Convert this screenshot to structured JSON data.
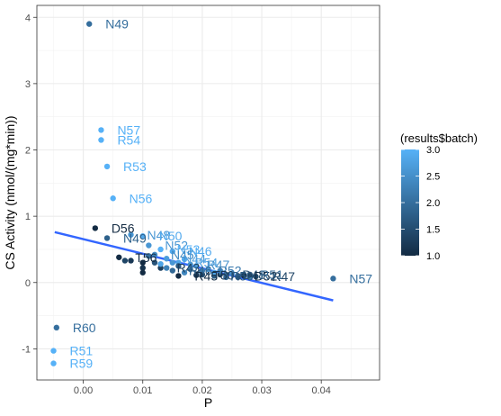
{
  "chart_data": {
    "type": "scatter",
    "title": "",
    "xlabel": "P",
    "ylabel": "CS Activity (nmol/(mg*min))",
    "xlim": [
      -0.0078,
      0.0498
    ],
    "ylim": [
      -1.47,
      4.18
    ],
    "xticks": [
      0.0,
      0.01,
      0.02,
      0.03,
      0.04
    ],
    "xtick_labels": [
      "0.00",
      "0.01",
      "0.02",
      "0.03",
      "0.04"
    ],
    "yticks": [
      -1,
      0,
      1,
      2,
      3,
      4
    ],
    "ytick_labels": [
      "-1",
      "0",
      "1",
      "2",
      "3",
      "4"
    ],
    "grid": true,
    "legend": {
      "title": "(results$batch)",
      "placement": "right",
      "type": "colorbar",
      "range": [
        1.0,
        3.0
      ],
      "ticks": [
        3.0,
        2.5,
        2.0,
        1.5,
        1.0
      ],
      "tick_labels": [
        "3.0",
        "2.5",
        "2.0",
        "1.5",
        "1.0"
      ],
      "color_low": "#132B43",
      "color_high": "#56B1F7"
    },
    "trend_line": {
      "x": [
        -0.0048,
        0.042
      ],
      "y": [
        0.76,
        -0.27
      ],
      "color": "#3366FF"
    },
    "points": [
      {
        "x": 0.001,
        "y": 3.9,
        "batch": 2.0,
        "label": "N49"
      },
      {
        "x": 0.003,
        "y": 2.3,
        "batch": 3.0,
        "label": "N57"
      },
      {
        "x": 0.003,
        "y": 2.15,
        "batch": 3.0,
        "label": "R54"
      },
      {
        "x": 0.004,
        "y": 1.75,
        "batch": 3.0,
        "label": "R53"
      },
      {
        "x": 0.005,
        "y": 1.27,
        "batch": 3.0,
        "label": "N56"
      },
      {
        "x": 0.002,
        "y": 0.82,
        "batch": 1.0,
        "label": "D56"
      },
      {
        "x": 0.004,
        "y": 0.67,
        "batch": 1.8,
        "label": "N49"
      },
      {
        "x": 0.008,
        "y": 0.72,
        "batch": 2.6,
        "label": "N48"
      },
      {
        "x": 0.01,
        "y": 0.7,
        "batch": 2.9,
        "label": "N50"
      },
      {
        "x": 0.011,
        "y": 0.56,
        "batch": 2.6,
        "label": "N52"
      },
      {
        "x": 0.013,
        "y": 0.5,
        "batch": 3.0,
        "label": "N53"
      },
      {
        "x": 0.015,
        "y": 0.47,
        "batch": 2.9,
        "label": "N46"
      },
      {
        "x": 0.012,
        "y": 0.42,
        "batch": 2.4,
        "label": "N45"
      },
      {
        "x": 0.006,
        "y": 0.38,
        "batch": 1.0,
        "label": "T56"
      },
      {
        "x": 0.014,
        "y": 0.36,
        "batch": 2.7,
        "label": "N44"
      },
      {
        "x": 0.016,
        "y": 0.3,
        "batch": 2.8,
        "label": "R54"
      },
      {
        "x": 0.018,
        "y": 0.27,
        "batch": 2.5,
        "label": "R47"
      },
      {
        "x": 0.013,
        "y": 0.22,
        "batch": 1.3,
        "label": "R43"
      },
      {
        "x": 0.015,
        "y": 0.18,
        "batch": 1.9,
        "label": "R46"
      },
      {
        "x": 0.02,
        "y": 0.18,
        "batch": 2.2,
        "label": "R52"
      },
      {
        "x": 0.016,
        "y": 0.1,
        "batch": 1.0,
        "label": "R45"
      },
      {
        "x": 0.019,
        "y": 0.11,
        "batch": 1.2,
        "label": "T50"
      },
      {
        "x": 0.022,
        "y": 0.1,
        "batch": 1.7,
        "label": "R50"
      },
      {
        "x": 0.024,
        "y": 0.12,
        "batch": 1.5,
        "label": "D48"
      },
      {
        "x": 0.026,
        "y": 0.1,
        "batch": 1.0,
        "label": "D52"
      },
      {
        "x": 0.027,
        "y": 0.12,
        "batch": 1.9,
        "label": "R51"
      },
      {
        "x": 0.029,
        "y": 0.09,
        "batch": 1.4,
        "label": "R47"
      },
      {
        "x": 0.042,
        "y": 0.06,
        "batch": 2.0,
        "label": "N57"
      },
      {
        "x": -0.0045,
        "y": -0.68,
        "batch": 2.0,
        "label": "R60"
      },
      {
        "x": -0.005,
        "y": -1.03,
        "batch": 3.0,
        "label": "R51"
      },
      {
        "x": -0.005,
        "y": -1.22,
        "batch": 3.0,
        "label": "R59"
      },
      {
        "x": 0.007,
        "y": 0.33,
        "batch": 1.4,
        "label": ""
      },
      {
        "x": 0.008,
        "y": 0.33,
        "batch": 1.2,
        "label": ""
      },
      {
        "x": 0.01,
        "y": 0.3,
        "batch": 1.0,
        "label": ""
      },
      {
        "x": 0.01,
        "y": 0.22,
        "batch": 1.1,
        "label": ""
      },
      {
        "x": 0.01,
        "y": 0.15,
        "batch": 1.0,
        "label": ""
      },
      {
        "x": 0.011,
        "y": 0.4,
        "batch": 2.0,
        "label": ""
      },
      {
        "x": 0.012,
        "y": 0.3,
        "batch": 1.6,
        "label": ""
      },
      {
        "x": 0.013,
        "y": 0.28,
        "batch": 2.8,
        "label": ""
      },
      {
        "x": 0.014,
        "y": 0.22,
        "batch": 2.3,
        "label": ""
      },
      {
        "x": 0.015,
        "y": 0.3,
        "batch": 2.6,
        "label": ""
      },
      {
        "x": 0.016,
        "y": 0.25,
        "batch": 1.7,
        "label": ""
      },
      {
        "x": 0.017,
        "y": 0.15,
        "batch": 2.4,
        "label": ""
      },
      {
        "x": 0.017,
        "y": 0.35,
        "batch": 2.9,
        "label": ""
      },
      {
        "x": 0.018,
        "y": 0.2,
        "batch": 2.1,
        "label": ""
      },
      {
        "x": 0.019,
        "y": 0.25,
        "batch": 2.7,
        "label": ""
      },
      {
        "x": 0.02,
        "y": 0.12,
        "batch": 1.5,
        "label": ""
      },
      {
        "x": 0.021,
        "y": 0.2,
        "batch": 2.5,
        "label": ""
      },
      {
        "x": 0.022,
        "y": 0.15,
        "batch": 2.8,
        "label": ""
      },
      {
        "x": 0.023,
        "y": 0.12,
        "batch": 1.2,
        "label": ""
      },
      {
        "x": 0.023,
        "y": 0.18,
        "batch": 2.3,
        "label": ""
      },
      {
        "x": 0.024,
        "y": 0.08,
        "batch": 1.9,
        "label": ""
      },
      {
        "x": 0.025,
        "y": 0.14,
        "batch": 2.6,
        "label": ""
      },
      {
        "x": 0.026,
        "y": 0.08,
        "batch": 1.6,
        "label": ""
      },
      {
        "x": 0.027,
        "y": 0.1,
        "batch": 1.1,
        "label": ""
      },
      {
        "x": 0.028,
        "y": 0.08,
        "batch": 2.2,
        "label": ""
      },
      {
        "x": 0.028,
        "y": 0.12,
        "batch": 1.3,
        "label": ""
      }
    ]
  }
}
